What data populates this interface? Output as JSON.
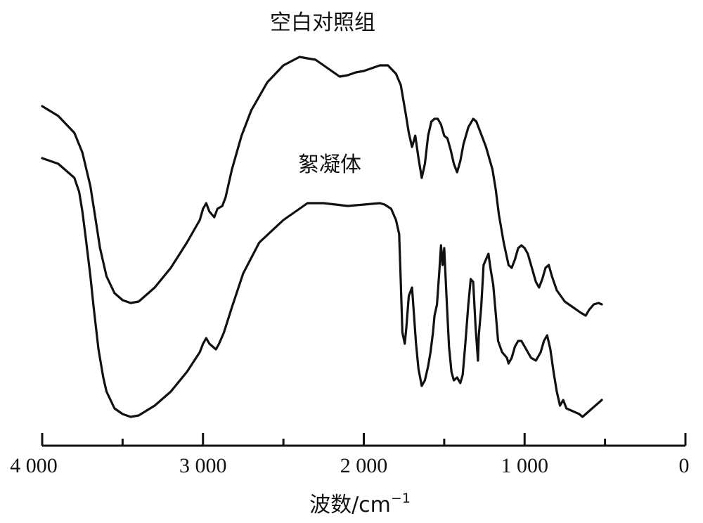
{
  "chart_data": {
    "type": "line",
    "x_axis": {
      "range": [
        4000,
        0
      ],
      "reversed": true,
      "major_ticks": [
        4000,
        3000,
        2000,
        1000,
        0
      ],
      "minor_ticks": [
        3500,
        2500,
        1500,
        500
      ],
      "tick_labels": [
        "4 000",
        "3 000",
        "2 000",
        "1 000",
        "0"
      ],
      "label_base": "波数/cm",
      "label_sup": "−1"
    },
    "y_axis": {
      "shown": false,
      "units": "offset transmittance (arbitrary)"
    },
    "grid": false,
    "series": [
      {
        "name": "空白对照组",
        "points": [
          [
            4000,
            70.5
          ],
          [
            3900,
            67
          ],
          [
            3800,
            61
          ],
          [
            3750,
            54
          ],
          [
            3700,
            42
          ],
          [
            3670,
            31
          ],
          [
            3640,
            20
          ],
          [
            3600,
            10
          ],
          [
            3550,
            4
          ],
          [
            3500,
            1.5
          ],
          [
            3450,
            0.5
          ],
          [
            3400,
            1
          ],
          [
            3300,
            6
          ],
          [
            3200,
            13
          ],
          [
            3100,
            22
          ],
          [
            3020,
            30
          ],
          [
            3000,
            34
          ],
          [
            2980,
            36
          ],
          [
            2960,
            33
          ],
          [
            2930,
            31
          ],
          [
            2910,
            34
          ],
          [
            2880,
            35
          ],
          [
            2860,
            38
          ],
          [
            2820,
            48
          ],
          [
            2760,
            60
          ],
          [
            2700,
            69
          ],
          [
            2600,
            79
          ],
          [
            2500,
            85
          ],
          [
            2400,
            88
          ],
          [
            2300,
            87
          ],
          [
            2200,
            83
          ],
          [
            2150,
            81
          ],
          [
            2100,
            81.5
          ],
          [
            2050,
            82.5
          ],
          [
            2000,
            83
          ],
          [
            1950,
            84
          ],
          [
            1900,
            85
          ],
          [
            1850,
            85
          ],
          [
            1800,
            82
          ],
          [
            1770,
            78
          ],
          [
            1740,
            68
          ],
          [
            1720,
            61
          ],
          [
            1700,
            56
          ],
          [
            1680,
            60
          ],
          [
            1660,
            52
          ],
          [
            1640,
            45
          ],
          [
            1620,
            50
          ],
          [
            1600,
            60
          ],
          [
            1580,
            65
          ],
          [
            1560,
            66
          ],
          [
            1540,
            66
          ],
          [
            1520,
            64
          ],
          [
            1500,
            60
          ],
          [
            1480,
            59
          ],
          [
            1460,
            55
          ],
          [
            1440,
            50
          ],
          [
            1420,
            47
          ],
          [
            1400,
            51
          ],
          [
            1380,
            57
          ],
          [
            1350,
            63
          ],
          [
            1320,
            66
          ],
          [
            1300,
            65
          ],
          [
            1280,
            62
          ],
          [
            1260,
            59
          ],
          [
            1240,
            56
          ],
          [
            1220,
            52
          ],
          [
            1200,
            48
          ],
          [
            1180,
            41
          ],
          [
            1160,
            32
          ],
          [
            1130,
            22
          ],
          [
            1100,
            14
          ],
          [
            1080,
            13
          ],
          [
            1060,
            16
          ],
          [
            1040,
            20
          ],
          [
            1020,
            21
          ],
          [
            1000,
            20
          ],
          [
            980,
            18
          ],
          [
            950,
            12
          ],
          [
            930,
            8
          ],
          [
            910,
            6
          ],
          [
            890,
            9
          ],
          [
            870,
            13
          ],
          [
            850,
            14
          ],
          [
            830,
            10
          ],
          [
            800,
            5
          ],
          [
            750,
            1
          ],
          [
            700,
            -1
          ],
          [
            650,
            -3
          ],
          [
            620,
            -4
          ],
          [
            600,
            -2
          ],
          [
            570,
            0
          ],
          [
            540,
            0.5
          ],
          [
            520,
            0
          ]
        ]
      },
      {
        "name": "絮凝体",
        "points": [
          [
            4000,
            52
          ],
          [
            3900,
            50
          ],
          [
            3800,
            45
          ],
          [
            3770,
            40
          ],
          [
            3750,
            33
          ],
          [
            3730,
            24
          ],
          [
            3700,
            10
          ],
          [
            3680,
            -1
          ],
          [
            3650,
            -16
          ],
          [
            3620,
            -26
          ],
          [
            3600,
            -31
          ],
          [
            3550,
            -37
          ],
          [
            3500,
            -39
          ],
          [
            3450,
            -40
          ],
          [
            3400,
            -39.5
          ],
          [
            3300,
            -36
          ],
          [
            3200,
            -31
          ],
          [
            3100,
            -24
          ],
          [
            3020,
            -17
          ],
          [
            3000,
            -14
          ],
          [
            2980,
            -12
          ],
          [
            2960,
            -14
          ],
          [
            2920,
            -16
          ],
          [
            2900,
            -14
          ],
          [
            2870,
            -10
          ],
          [
            2820,
            -1
          ],
          [
            2750,
            11
          ],
          [
            2650,
            22
          ],
          [
            2500,
            30
          ],
          [
            2400,
            34
          ],
          [
            2350,
            36
          ],
          [
            2250,
            36
          ],
          [
            2100,
            35
          ],
          [
            2000,
            35.5
          ],
          [
            1900,
            36
          ],
          [
            1870,
            35.5
          ],
          [
            1830,
            34
          ],
          [
            1800,
            30
          ],
          [
            1780,
            25
          ],
          [
            1770,
            8
          ],
          [
            1760,
            -10
          ],
          [
            1745,
            -14
          ],
          [
            1735,
            -8
          ],
          [
            1720,
            3
          ],
          [
            1700,
            6
          ],
          [
            1690,
            -2
          ],
          [
            1675,
            -14
          ],
          [
            1660,
            -23
          ],
          [
            1640,
            -29
          ],
          [
            1620,
            -27
          ],
          [
            1600,
            -22
          ],
          [
            1585,
            -17
          ],
          [
            1570,
            -10
          ],
          [
            1560,
            -4
          ],
          [
            1545,
            0
          ],
          [
            1530,
            12
          ],
          [
            1520,
            21
          ],
          [
            1510,
            14
          ],
          [
            1500,
            20
          ],
          [
            1485,
            2
          ],
          [
            1470,
            -15
          ],
          [
            1455,
            -24
          ],
          [
            1440,
            -27
          ],
          [
            1420,
            -26
          ],
          [
            1400,
            -28
          ],
          [
            1385,
            -25
          ],
          [
            1370,
            -15
          ],
          [
            1350,
            0
          ],
          [
            1335,
            9
          ],
          [
            1320,
            8
          ],
          [
            1305,
            -8
          ],
          [
            1290,
            -20
          ],
          [
            1285,
            -11
          ],
          [
            1270,
            -1
          ],
          [
            1255,
            14
          ],
          [
            1240,
            16
          ],
          [
            1225,
            18
          ],
          [
            1210,
            12
          ],
          [
            1195,
            7
          ],
          [
            1180,
            -3
          ],
          [
            1165,
            -13
          ],
          [
            1140,
            -17
          ],
          [
            1110,
            -19
          ],
          [
            1100,
            -21
          ],
          [
            1080,
            -19
          ],
          [
            1060,
            -15
          ],
          [
            1040,
            -13
          ],
          [
            1020,
            -13
          ],
          [
            1000,
            -15
          ],
          [
            980,
            -17
          ],
          [
            960,
            -19
          ],
          [
            930,
            -20
          ],
          [
            900,
            -17
          ],
          [
            880,
            -13
          ],
          [
            860,
            -11
          ],
          [
            840,
            -16
          ],
          [
            820,
            -24
          ],
          [
            800,
            -31
          ],
          [
            780,
            -36
          ],
          [
            760,
            -34
          ],
          [
            740,
            -37
          ],
          [
            700,
            -38
          ],
          [
            660,
            -39
          ],
          [
            640,
            -40
          ],
          [
            620,
            -39
          ],
          [
            580,
            -37
          ],
          [
            540,
            -35
          ],
          [
            520,
            -34
          ]
        ]
      }
    ]
  }
}
